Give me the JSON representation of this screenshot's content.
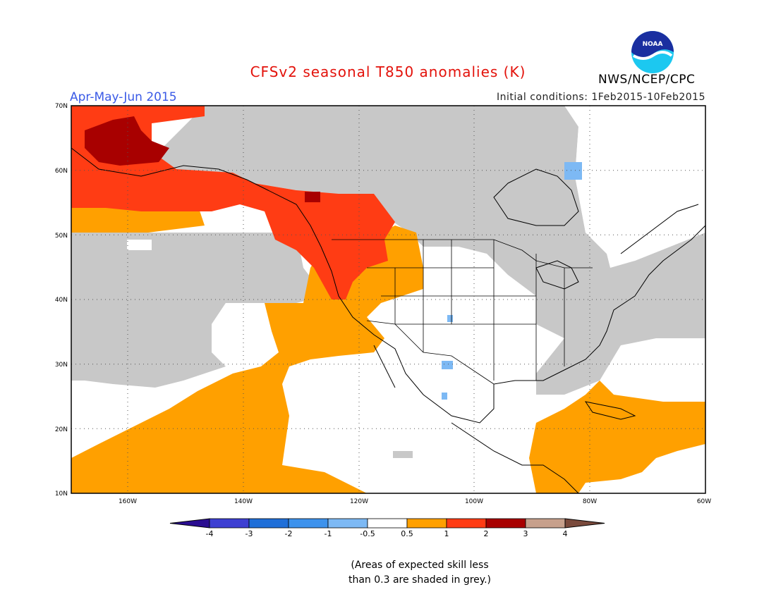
{
  "title": "CFSv2 seasonal T850 anomalies (K)",
  "subtitle_left": "Apr-May-Jun 2015",
  "subtitle_right": "Initial conditions: 1Feb2015-10Feb2015",
  "agency": "NWS/NCEP/CPC",
  "logo_text": "NOAA",
  "lat_labels": [
    "70N",
    "60N",
    "50N",
    "40N",
    "30N",
    "20N",
    "10N"
  ],
  "lon_labels": [
    "160W",
    "140W",
    "120W",
    "100W",
    "80W",
    "60W"
  ],
  "colorbar": {
    "colors": [
      "#2a0d91",
      "#3d3fd2",
      "#1f6fd8",
      "#3d92ec",
      "#7db9f4",
      "#ffffff",
      "#ffa000",
      "#ff3c14",
      "#a80000",
      "#c7a08c",
      "#7a4a3c"
    ],
    "labels": [
      "-4",
      "-3",
      "-2",
      "-1",
      "-0.5",
      "0.5",
      "1",
      "2",
      "3",
      "4"
    ]
  },
  "palette": {
    "grey_low_skill": "#c8c8c8",
    "orange_0_5_to_1": "#ffa000",
    "red_1_to_2": "#ff3c14",
    "darkred_2_to_3": "#a80000",
    "lightblue_m1_to_m0_5": "#7db9f4"
  },
  "footnote": {
    "line1": "(Areas of expected skill less",
    "line2": "than 0.3 are shaded in grey.)"
  }
}
